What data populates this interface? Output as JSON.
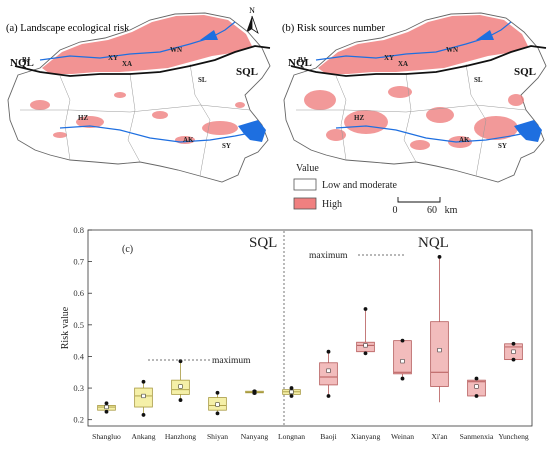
{
  "panel_a": {
    "title": "(a) Landscape ecological risk",
    "north": "N",
    "regions": {
      "nql": "NQL",
      "sql": "SQL"
    },
    "cities": [
      "BJ",
      "XY",
      "XA",
      "WN",
      "SL",
      "HZ",
      "AK",
      "SY"
    ]
  },
  "panel_b": {
    "title": "(b) Risk sources number",
    "regions": {
      "nql": "NQL",
      "sql": "SQL"
    },
    "cities": [
      "BJ",
      "XY",
      "XA",
      "WN",
      "SL",
      "HZ",
      "AK",
      "SY"
    ]
  },
  "legend": {
    "title": "Value",
    "items": [
      {
        "label": "Low and moderate",
        "color": "#ffffff"
      },
      {
        "label": "High",
        "color": "#f08080"
      }
    ]
  },
  "scalebar": {
    "zero": "0",
    "value": "60",
    "unit": "km"
  },
  "colors": {
    "high": "#f08080",
    "water": "#1e6fe0",
    "sql_box": "#f5f0a8",
    "nql_box": "#f2bcbc"
  },
  "chart_data": {
    "type": "box",
    "panel_label": "(c)",
    "ylabel": "Risk value",
    "ylim": [
      0.18,
      0.8
    ],
    "yticks": [
      0.2,
      0.3,
      0.4,
      0.5,
      0.6,
      0.7,
      0.8
    ],
    "groups": [
      {
        "name": "SQL",
        "categories": [
          "Shangluo",
          "Ankang",
          "Hanzhong",
          "Shiyan",
          "Nanyang",
          "Longnan"
        ]
      },
      {
        "name": "NQL",
        "categories": [
          "Baoji",
          "Xianyang",
          "Weinan",
          "Xi'an",
          "Sanmenxia",
          "Yuncheng"
        ]
      }
    ],
    "annotations": [
      "maximum",
      "maximum"
    ],
    "boxes": [
      {
        "category": "Shangluo",
        "q1": 0.23,
        "median": 0.24,
        "q3": 0.245,
        "mean": 0.24,
        "min": 0.222,
        "max": 0.25,
        "points": [
          0.252,
          0.225
        ]
      },
      {
        "category": "Ankang",
        "q1": 0.24,
        "median": 0.275,
        "q3": 0.3,
        "mean": 0.275,
        "min": 0.215,
        "max": 0.32,
        "points": [
          0.32,
          0.215
        ]
      },
      {
        "category": "Hanzhong",
        "q1": 0.28,
        "median": 0.295,
        "q3": 0.325,
        "mean": 0.305,
        "min": 0.262,
        "max": 0.385,
        "points": [
          0.385,
          0.262
        ]
      },
      {
        "category": "Shiyan",
        "q1": 0.23,
        "median": 0.245,
        "q3": 0.27,
        "mean": 0.248,
        "min": 0.22,
        "max": 0.285,
        "points": [
          0.285,
          0.22
        ]
      },
      {
        "category": "Nanyang",
        "q1": 0.285,
        "median": 0.287,
        "q3": 0.29,
        "mean": 0.287,
        "min": 0.284,
        "max": 0.29,
        "points": [
          0.29,
          0.284
        ]
      },
      {
        "category": "Longnan",
        "q1": 0.28,
        "median": 0.288,
        "q3": 0.295,
        "mean": 0.288,
        "min": 0.275,
        "max": 0.3,
        "points": [
          0.3,
          0.275
        ]
      },
      {
        "category": "Baoji",
        "q1": 0.31,
        "median": 0.335,
        "q3": 0.38,
        "mean": 0.355,
        "min": 0.275,
        "max": 0.415,
        "points": [
          0.415,
          0.275
        ]
      },
      {
        "category": "Xianyang",
        "q1": 0.415,
        "median": 0.435,
        "q3": 0.445,
        "mean": 0.435,
        "min": 0.41,
        "max": 0.55,
        "points": [
          0.55,
          0.41
        ]
      },
      {
        "category": "Weinan",
        "q1": 0.345,
        "median": 0.35,
        "q3": 0.45,
        "mean": 0.385,
        "min": 0.33,
        "max": 0.45,
        "points": [
          0.45,
          0.33
        ]
      },
      {
        "category": "Xi'an",
        "q1": 0.305,
        "median": 0.35,
        "q3": 0.51,
        "mean": 0.42,
        "min": 0.255,
        "max": 0.715,
        "points": [
          0.715
        ]
      },
      {
        "category": "Sanmenxia",
        "q1": 0.275,
        "median": 0.32,
        "q3": 0.325,
        "mean": 0.305,
        "min": 0.275,
        "max": 0.33,
        "points": [
          0.33,
          0.275
        ]
      },
      {
        "category": "Yuncheng",
        "q1": 0.39,
        "median": 0.43,
        "q3": 0.44,
        "mean": 0.415,
        "min": 0.39,
        "max": 0.44,
        "points": [
          0.44,
          0.39
        ]
      }
    ]
  }
}
